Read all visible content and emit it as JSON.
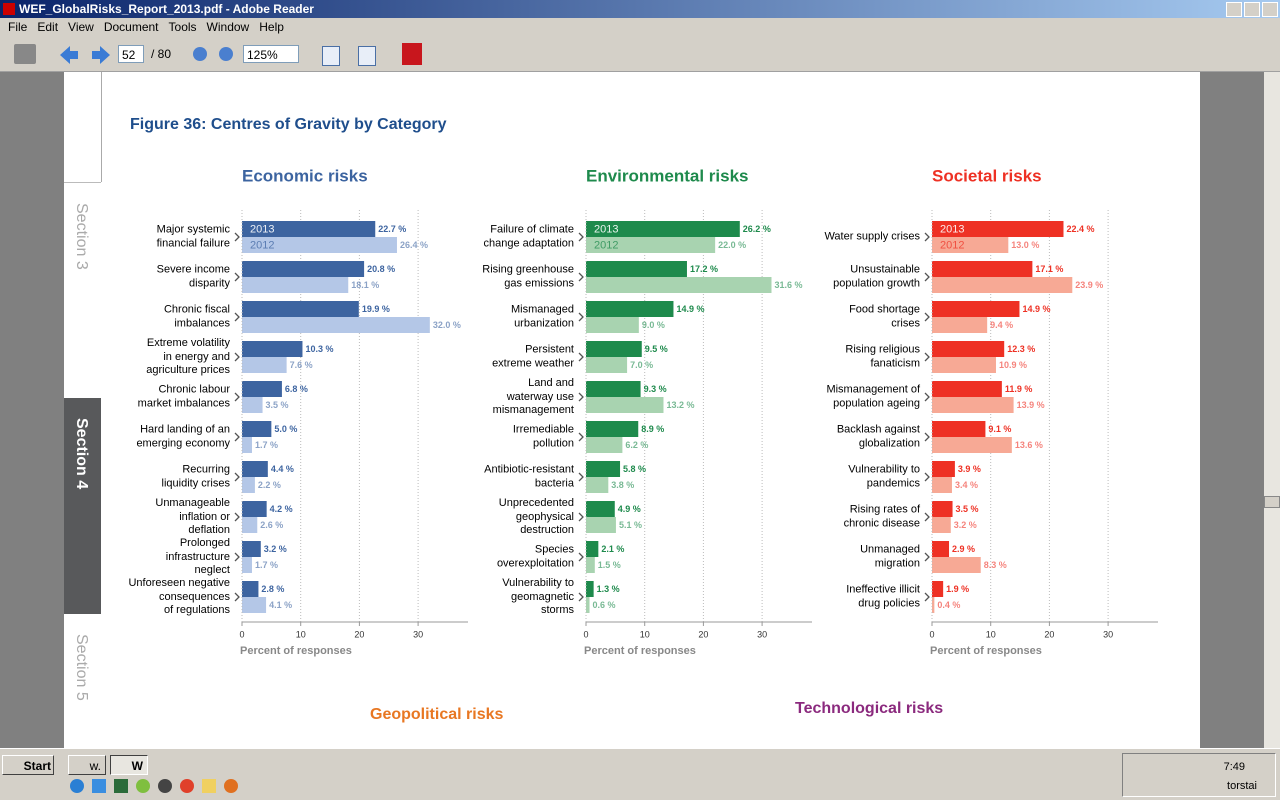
{
  "window": {
    "title": "WEF_GlobalRisks_Report_2013.pdf - Adobe Reader"
  },
  "menu": [
    "File",
    "Edit",
    "View",
    "Document",
    "Tools",
    "Window",
    "Help"
  ],
  "toolbar": {
    "page": "52",
    "page_total": "/ 80",
    "zoom": "125%"
  },
  "sidebar": [
    "Section 3",
    "Section 4",
    "Section 5"
  ],
  "document": {
    "figure_title": "Figure 36: Centres of Gravity by Category",
    "next_titles": [
      "Geopolitical risks",
      "Technological risks"
    ]
  },
  "chart_data": [
    {
      "type": "bar",
      "orientation": "horizontal",
      "title": "Economic risks",
      "title_color": "#3c64a0",
      "xlabel": "Percent of responses",
      "xlim": [
        0,
        38.5
      ],
      "xticks": [
        0,
        10,
        20,
        30
      ],
      "grid": true,
      "categories": [
        "Major systemic\nfinancial failure",
        "Severe income\ndisparity",
        "Chronic fiscal\nimbalances",
        "Extreme volatility\nin energy and\nagriculture prices",
        "Chronic labour\nmarket imbalances",
        "Hard landing of an\nemerging economy",
        "Recurring\nliquidity crises",
        "Unmanageable\ninflation or\ndeflation",
        "Prolonged\ninfrastructure\nneglect",
        "Unforeseen negative\nconsequences\nof regulations"
      ],
      "series": [
        {
          "name": "2013",
          "color": "#3d64a0",
          "values": [
            22.7,
            20.8,
            19.9,
            10.3,
            6.8,
            5.0,
            4.4,
            4.2,
            3.2,
            2.8
          ],
          "value_labels": [
            "22.7 %",
            "20.8 %",
            "19.9 %",
            "10.3 %",
            "6.8 %",
            "5.0 %",
            "4.4 %",
            "4.2 %",
            "3.2 %",
            "2.8 %"
          ]
        },
        {
          "name": "2012",
          "color": "#b4c7e7",
          "values": [
            26.4,
            18.1,
            32.0,
            7.6,
            3.5,
            1.7,
            2.2,
            2.6,
            1.7,
            4.1
          ],
          "value_labels": [
            "26.4 %",
            "18.1 %",
            "32.0 %",
            "7.6 %",
            "3.5 %",
            "1.7 %",
            "2.2 %",
            "2.6 %",
            "1.7 %",
            "4.1 %"
          ]
        }
      ]
    },
    {
      "type": "bar",
      "orientation": "horizontal",
      "title": "Environmental risks",
      "title_color": "#1e8a4c",
      "xlabel": "Percent of responses",
      "xlim": [
        0,
        38.5
      ],
      "xticks": [
        0,
        10,
        20,
        30
      ],
      "grid": true,
      "categories": [
        "Failure of climate\nchange adaptation",
        "Rising greenhouse\ngas emissions",
        "Mismanaged\nurbanization",
        "Persistent\nextreme weather",
        "Land and\nwaterway use\nmismanagement",
        "Irremediable\npollution",
        "Antibiotic-resistant\nbacteria",
        "Unprecedented\ngeophysical\ndestruction",
        "Species\noverexploitation",
        "Vulnerability to\ngeomagnetic\nstorms"
      ],
      "series": [
        {
          "name": "2013",
          "color": "#1e8a4c",
          "values": [
            26.2,
            17.2,
            14.9,
            9.5,
            9.3,
            8.9,
            5.8,
            4.9,
            2.1,
            1.3
          ],
          "value_labels": [
            "26.2 %",
            "17.2 %",
            "14.9 %",
            "9.5 %",
            "9.3 %",
            "8.9 %",
            "5.8 %",
            "4.9 %",
            "2.1 %",
            "1.3 %"
          ]
        },
        {
          "name": "2012",
          "color": "#a8d3b0",
          "values": [
            22.0,
            31.6,
            9.0,
            7.0,
            13.2,
            6.2,
            3.8,
            5.1,
            1.5,
            0.6
          ],
          "value_labels": [
            "22.0 %",
            "31.6 %",
            "9.0 %",
            "7.0 %",
            "13.2 %",
            "6.2 %",
            "3.8 %",
            "5.1 %",
            "1.5 %",
            "0.6 %"
          ]
        }
      ]
    },
    {
      "type": "bar",
      "orientation": "horizontal",
      "title": "Societal risks",
      "title_color": "#ee3124",
      "xlabel": "Percent of responses",
      "xlim": [
        0,
        38.5
      ],
      "xticks": [
        0,
        10,
        20,
        30
      ],
      "grid": true,
      "categories": [
        "Water supply crises",
        "Unsustainable\npopulation growth",
        "Food shortage\ncrises",
        "Rising religious\nfanaticism",
        "Mismanagement of\npopulation ageing",
        "Backlash against\nglobalization",
        "Vulnerability to\npandemics",
        "Rising rates of\nchronic disease",
        "Unmanaged\nmigration",
        "Ineffective illicit\ndrug policies"
      ],
      "series": [
        {
          "name": "2013",
          "color": "#ee3124",
          "values": [
            22.4,
            17.1,
            14.9,
            12.3,
            11.9,
            9.1,
            3.9,
            3.5,
            2.9,
            1.9
          ],
          "value_labels": [
            "22.4 %",
            "17.1 %",
            "14.9 %",
            "12.3 %",
            "11.9 %",
            "9.1 %",
            "3.9 %",
            "3.5 %",
            "2.9 %",
            "1.9 %"
          ]
        },
        {
          "name": "2012",
          "color": "#f7a995",
          "values": [
            13.0,
            23.9,
            9.4,
            10.9,
            13.9,
            13.6,
            3.4,
            3.2,
            8.3,
            0.4
          ],
          "value_labels": [
            "13.0 %",
            "23.9 %",
            "9.4 %",
            "10.9 %",
            "13.9 %",
            "13.6 %",
            "3.4 %",
            "3.2 %",
            "8.3 %",
            "0.4 %"
          ]
        }
      ]
    }
  ],
  "taskbar": {
    "start": "Start",
    "tasks": [
      "w.",
      "W"
    ],
    "clock": "7:49",
    "day": "torstai"
  }
}
